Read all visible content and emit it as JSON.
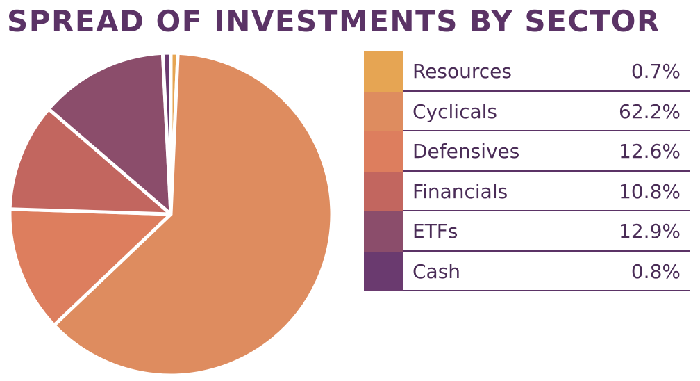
{
  "chart_data": {
    "type": "pie",
    "title": "SPREAD OF INVESTMENTS BY SECTOR",
    "categories": [
      "Resources",
      "Cyclicals",
      "Defensives",
      "Financials",
      "ETFs",
      "Cash"
    ],
    "values": [
      0.7,
      62.2,
      12.6,
      10.8,
      12.9,
      0.8
    ],
    "value_labels": [
      "0.7%",
      "62.2%",
      "12.6%",
      "10.8%",
      "12.9%",
      "0.8%"
    ],
    "colors": [
      "#e6a553",
      "#de8c5f",
      "#dd7e5e",
      "#c2665f",
      "#8b4d6b",
      "#6a3a6f"
    ],
    "legend": "right"
  }
}
